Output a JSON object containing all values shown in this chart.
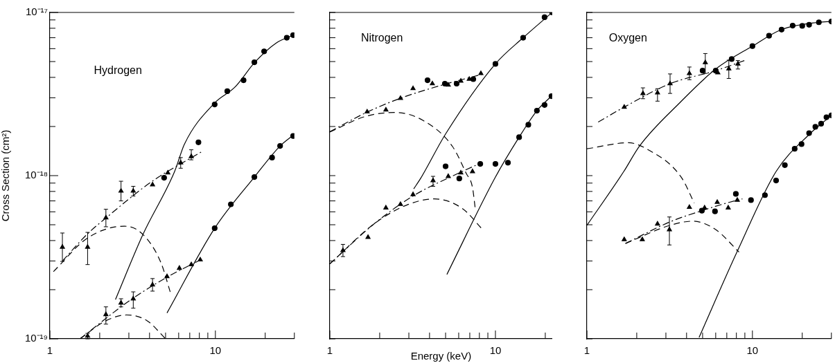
{
  "chart_data": [
    {
      "type": "scatter",
      "annotations": [
        "Hydrogen"
      ],
      "ylabel": "Cross Section (cm²)",
      "log": "xy",
      "xlim": [
        1,
        30
      ],
      "ylim": [
        1e-19,
        1e-17
      ],
      "xticks": [
        {
          "value": 1,
          "label": "1"
        },
        {
          "value": 2,
          "label": null
        },
        {
          "value": 3,
          "label": null
        },
        {
          "value": 4,
          "label": null
        },
        {
          "value": 5,
          "label": null
        },
        {
          "value": 6,
          "label": null
        },
        {
          "value": 7,
          "label": null
        },
        {
          "value": 8,
          "label": null
        },
        {
          "value": 9,
          "label": null
        },
        {
          "value": 10,
          "label": "10"
        },
        {
          "value": 20,
          "label": null
        },
        {
          "value": 30,
          "label": null
        }
      ],
      "yticks": [
        {
          "value": 1e-19,
          "label": "10⁻¹⁹"
        },
        {
          "value": 2e-19,
          "label": null
        },
        {
          "value": 3e-19,
          "label": null
        },
        {
          "value": 4e-19,
          "label": null
        },
        {
          "value": 5e-19,
          "label": null
        },
        {
          "value": 6e-19,
          "label": null
        },
        {
          "value": 7e-19,
          "label": null
        },
        {
          "value": 8e-19,
          "label": null
        },
        {
          "value": 9e-19,
          "label": null
        },
        {
          "value": 1e-18,
          "label": "10⁻¹⁸"
        },
        {
          "value": 2e-18,
          "label": null
        },
        {
          "value": 3e-18,
          "label": null
        },
        {
          "value": 4e-18,
          "label": null
        },
        {
          "value": 5e-18,
          "label": null
        },
        {
          "value": 6e-18,
          "label": null
        },
        {
          "value": 7e-18,
          "label": null
        },
        {
          "value": 8e-18,
          "label": null
        },
        {
          "value": 9e-18,
          "label": null
        },
        {
          "value": 1e-17,
          "label": "10⁻¹⁷"
        }
      ],
      "series": [
        {
          "type": "scatter",
          "marker": "circle",
          "color": "#000000",
          "x": [
            4.9,
            7.9,
            9.9,
            11.8,
            14.8,
            17.2,
            19.7,
            27,
            29.5
          ],
          "values": [
            9.7e-19,
            1.6e-18,
            2.73e-18,
            3.29e-18,
            3.84e-18,
            4.95e-18,
            5.77e-18,
            7e-18,
            7.26e-18
          ]
        },
        {
          "type": "line",
          "marker": "none",
          "line_style": "solid",
          "color": "#000000",
          "x": [
            2.49,
            3.65,
            5.67,
            6.5,
            9.9,
            13.1,
            17.4,
            23.3,
            29.5
          ],
          "values": [
            1.74e-19,
            4.36e-19,
            1.06e-18,
            1.56e-18,
            2.79e-18,
            3.48e-18,
            4.98e-18,
            6.5e-18,
            7.26e-18
          ]
        },
        {
          "type": "scatter",
          "marker": "circle",
          "color": "#000000",
          "x": [
            9.9,
            12.4,
            17.2,
            22,
            24.6,
            29.5
          ],
          "values": [
            4.76e-19,
            6.67e-19,
            9.8e-19,
            1.29e-18,
            1.52e-18,
            1.75e-18
          ]
        },
        {
          "type": "line",
          "marker": "none",
          "line_style": "solid",
          "color": "#000000",
          "x": [
            5.1,
            9.9,
            17.2,
            24.6,
            29.5
          ],
          "values": [
            1.44e-19,
            4.76e-19,
            9.8e-19,
            1.52e-18,
            1.77e-18
          ]
        },
        {
          "type": "scatter",
          "marker": "triangle",
          "color": "#000000",
          "x": [
            1.19,
            1.69,
            2.18,
            2.69,
            3.19,
            4.17,
            5.16,
            6.17,
            7.15
          ],
          "values": [
            3.65e-19,
            3.65e-19,
            5.52e-19,
            8.05e-19,
            8.05e-19,
            8.8e-19,
            1.04e-18,
            1.2e-18,
            1.31e-18
          ],
          "errors": [
            [
              2.98e-19,
              4.45e-19
            ],
            [
              2.85e-19,
              4.49e-19
            ],
            [
              4.86e-19,
              6.22e-19
            ],
            [
              7e-19,
              9.24e-19
            ],
            [
              7.5e-19,
              8.6e-19
            ],
            null,
            null,
            [
              1.11e-18,
              1.29e-18
            ],
            [
              1.25e-18,
              1.44e-18
            ]
          ]
        },
        {
          "type": "line",
          "marker": "none",
          "line_style": "dotted",
          "color": "#000000",
          "x": [
            1.19,
            1.69,
            2.18,
            4.13,
            8.26
          ],
          "values": [
            3e-19,
            4.4e-19,
            5.5e-19,
            9.2e-19,
            1.4e-18
          ]
        },
        {
          "type": "line",
          "marker": "none",
          "line_style": "dashed",
          "color": "#000000",
          "x": [
            1.05,
            1.69,
            2.82,
            3.65,
            4.68,
            5.35
          ],
          "values": [
            2.58e-19,
            4.15e-19,
            4.9e-19,
            4.36e-19,
            2.94e-19,
            1.92e-19
          ]
        },
        {
          "type": "scatter",
          "marker": "triangle",
          "color": "#000000",
          "x": [
            1.69,
            2.18,
            2.69,
            3.19,
            4.17,
            5.1,
            6.06,
            7.15,
            8.1
          ],
          "values": [
            1.04e-19,
            1.41e-19,
            1.66e-19,
            1.76e-19,
            2.14e-19,
            2.41e-19,
            2.71e-19,
            2.85e-19,
            3.05e-19
          ],
          "errors": [
            [
              1e-19,
              1.08e-19
            ],
            [
              1.23e-19,
              1.57e-19
            ],
            [
              1.57e-19,
              1.76e-19
            ],
            [
              1.54e-19,
              1.94e-19
            ],
            [
              1.96e-19,
              2.34e-19
            ],
            null,
            null,
            null,
            null
          ]
        },
        {
          "type": "line",
          "marker": "none",
          "line_style": "dotted",
          "color": "#000000",
          "x": [
            1.52,
            3.0,
            5.0,
            8.26
          ],
          "values": [
            1e-19,
            1.7e-19,
            2.36e-19,
            3.07e-19
          ]
        },
        {
          "type": "line",
          "marker": "none",
          "line_style": "dashed",
          "color": "#000000",
          "x": [
            1.52,
            2.18,
            2.9,
            3.87,
            5.0
          ],
          "values": [
            1e-19,
            1.29e-19,
            1.4e-19,
            1.29e-19,
            1e-19
          ]
        }
      ]
    },
    {
      "type": "scatter",
      "annotations": [
        "Nitrogen"
      ],
      "xlabel": "Energy (keV)",
      "log": "xy",
      "tick_labels": "x",
      "xlim": [
        1,
        22
      ],
      "ylim": [
        1e-19,
        1e-17
      ],
      "xticks": [
        {
          "value": 1,
          "label": "1"
        },
        {
          "value": 2,
          "label": null
        },
        {
          "value": 3,
          "label": null
        },
        {
          "value": 4,
          "label": null
        },
        {
          "value": 5,
          "label": null
        },
        {
          "value": 6,
          "label": null
        },
        {
          "value": 7,
          "label": null
        },
        {
          "value": 8,
          "label": null
        },
        {
          "value": 9,
          "label": null
        },
        {
          "value": 10,
          "label": "10"
        },
        {
          "value": 20,
          "label": null
        }
      ],
      "yticks": [
        {
          "value": 1e-19,
          "label": null
        },
        {
          "value": 2e-19,
          "label": null
        },
        {
          "value": 3e-19,
          "label": null
        },
        {
          "value": 4e-19,
          "label": null
        },
        {
          "value": 5e-19,
          "label": null
        },
        {
          "value": 6e-19,
          "label": null
        },
        {
          "value": 7e-19,
          "label": null
        },
        {
          "value": 8e-19,
          "label": null
        },
        {
          "value": 9e-19,
          "label": null
        },
        {
          "value": 1e-18,
          "label": null
        },
        {
          "value": 2e-18,
          "label": null
        },
        {
          "value": 3e-18,
          "label": null
        },
        {
          "value": 4e-18,
          "label": null
        },
        {
          "value": 5e-18,
          "label": null
        },
        {
          "value": 6e-18,
          "label": null
        },
        {
          "value": 7e-18,
          "label": null
        },
        {
          "value": 8e-18,
          "label": null
        },
        {
          "value": 9e-18,
          "label": null
        },
        {
          "value": 1e-17,
          "label": null
        }
      ],
      "series": [
        {
          "type": "scatter",
          "marker": "circle",
          "color": "#000000",
          "x": [
            3.89,
            4.95,
            5.83,
            7.35,
            10,
            14.7,
            19.8,
            22
          ],
          "values": [
            3.84e-18,
            3.66e-18,
            3.66e-18,
            3.9e-18,
            4.84e-18,
            7e-18,
            9.35e-18,
            1e-17
          ]
        },
        {
          "type": "line",
          "marker": "none",
          "line_style": "solid",
          "color": "#000000",
          "x": [
            3.21,
            3.53,
            5.0,
            10,
            14.7,
            22
          ],
          "values": [
            8.3e-19,
            9.6e-19,
            1.8e-18,
            4.84e-18,
            7e-18,
            1e-17
          ]
        },
        {
          "type": "scatter",
          "marker": "triangle",
          "color": "#000000",
          "x": [
            1.68,
            2.18,
            2.67,
            3.18,
            4.16,
            5.19,
            6.18,
            6.95,
            8.17
          ],
          "values": [
            2.46e-18,
            2.53e-18,
            2.98e-18,
            3.42e-18,
            3.66e-18,
            3.59e-18,
            3.8e-18,
            3.9e-18,
            4.23e-18
          ]
        },
        {
          "type": "line",
          "marker": "none",
          "line_style": "dotted",
          "color": "#000000",
          "x": [
            1,
            1.68,
            2.67,
            4.95,
            8.4
          ],
          "values": [
            1.86e-18,
            2.45e-18,
            2.98e-18,
            3.63e-18,
            4.19e-18
          ]
        },
        {
          "type": "line",
          "marker": "none",
          "line_style": "dashed",
          "color": "#000000",
          "x": [
            1,
            1.63,
            2.47,
            3.74,
            5.5,
            6.67,
            7.27,
            7.55
          ],
          "values": [
            1.85e-18,
            2.3e-18,
            2.44e-18,
            2.15e-18,
            1.51e-18,
            1.03e-18,
            8.45e-19,
            6.3e-19
          ]
        },
        {
          "type": "scatter",
          "marker": "circle",
          "color": "#000000",
          "x": [
            5.0,
            6.05,
            8.1,
            10,
            11.9,
            13.9,
            15.8,
            17.8,
            19.8,
            21.8
          ],
          "values": [
            1.14e-18,
            9.6e-19,
            1.18e-18,
            1.18e-18,
            1.2e-18,
            1.72e-18,
            2.05e-18,
            2.5e-18,
            2.71e-18,
            3.07e-18
          ]
        },
        {
          "type": "line",
          "marker": "none",
          "line_style": "solid",
          "color": "#000000",
          "x": [
            5.09,
            10,
            13.9,
            17.8,
            22
          ],
          "values": [
            2.48e-19,
            9.8e-19,
            1.72e-18,
            2.5e-18,
            3.1e-18
          ]
        },
        {
          "type": "scatter",
          "marker": "triangle",
          "color": "#000000",
          "x": [
            1.2,
            1.7,
            2.18,
            2.67,
            3.18,
            4.2,
            5.19,
            6.18,
            7.27
          ],
          "values": [
            3.48e-19,
            4.19e-19,
            6.35e-19,
            6.67e-19,
            7.66e-19,
            9.33e-19,
            9.9e-19,
            1.04e-18,
            1.06e-18
          ],
          "errors": [
            [
              3.19e-19,
              3.79e-19
            ],
            null,
            null,
            null,
            null,
            [
              8.6e-19,
              9.9e-19
            ],
            null,
            null,
            null
          ]
        },
        {
          "type": "line",
          "marker": "none",
          "line_style": "dotted",
          "color": "#000000",
          "x": [
            1,
            1.85,
            3.18,
            6.05,
            8.1
          ],
          "values": [
            2.88e-19,
            5.06e-19,
            7.5e-19,
            1.04e-18,
            1.19e-18
          ]
        },
        {
          "type": "line",
          "marker": "none",
          "line_style": "dashed",
          "color": "#000000",
          "x": [
            1,
            1.85,
            2.91,
            4.28,
            6.3,
            8.3
          ],
          "values": [
            2.88e-19,
            5.06e-19,
            6.6e-19,
            7.2e-19,
            6.3e-19,
            4.72e-19
          ]
        }
      ]
    },
    {
      "type": "scatter",
      "annotations": [
        "Oxygen"
      ],
      "log": "xy",
      "tick_labels": "x",
      "xlim": [
        1,
        30
      ],
      "ylim": [
        1e-19,
        1e-17
      ],
      "xticks": [
        {
          "value": 1,
          "label": "1"
        },
        {
          "value": 2,
          "label": null
        },
        {
          "value": 3,
          "label": null
        },
        {
          "value": 4,
          "label": null
        },
        {
          "value": 5,
          "label": null
        },
        {
          "value": 6,
          "label": null
        },
        {
          "value": 7,
          "label": null
        },
        {
          "value": 8,
          "label": null
        },
        {
          "value": 9,
          "label": null
        },
        {
          "value": 10,
          "label": "10"
        },
        {
          "value": 20,
          "label": null
        },
        {
          "value": 30,
          "label": null
        }
      ],
      "yticks": [
        {
          "value": 1e-19,
          "label": null
        },
        {
          "value": 2e-19,
          "label": null
        },
        {
          "value": 3e-19,
          "label": null
        },
        {
          "value": 4e-19,
          "label": null
        },
        {
          "value": 5e-19,
          "label": null
        },
        {
          "value": 6e-19,
          "label": null
        },
        {
          "value": 7e-19,
          "label": null
        },
        {
          "value": 8e-19,
          "label": null
        },
        {
          "value": 9e-19,
          "label": null
        },
        {
          "value": 1e-18,
          "label": null
        },
        {
          "value": 2e-18,
          "label": null
        },
        {
          "value": 3e-18,
          "label": null
        },
        {
          "value": 4e-18,
          "label": null
        },
        {
          "value": 5e-18,
          "label": null
        },
        {
          "value": 6e-18,
          "label": null
        },
        {
          "value": 7e-18,
          "label": null
        },
        {
          "value": 8e-18,
          "label": null
        },
        {
          "value": 9e-18,
          "label": null
        },
        {
          "value": 1e-17,
          "label": null
        }
      ],
      "series": [
        {
          "type": "scatter",
          "marker": "circle",
          "color": "#000000",
          "x": [
            5.0,
            6.0,
            7.49,
            10,
            12.6,
            15.0,
            17.5,
            20.0,
            22.0,
            25.2,
            30
          ],
          "values": [
            4.4e-18,
            4.4e-18,
            5.18e-18,
            6.22e-18,
            7.2e-18,
            7.85e-18,
            8.3e-18,
            8.27e-18,
            8.4e-18,
            8.7e-18,
            8.8e-18
          ]
        },
        {
          "type": "line",
          "marker": "none",
          "line_style": "solid",
          "color": "#000000",
          "x": [
            1,
            1.67,
            2.08,
            3.67,
            6.0,
            10,
            15,
            25,
            30
          ],
          "values": [
            4.96e-19,
            1.06e-18,
            1.52e-18,
            2.82e-18,
            4.5e-18,
            6.22e-18,
            7.85e-18,
            8.7e-18,
            8.8e-18
          ]
        },
        {
          "type": "scatter",
          "marker": "triangle",
          "color": "#000000",
          "x": [
            1.68,
            2.18,
            2.67,
            3.18,
            4.16,
            5.19,
            6.18,
            7.2,
            8.17
          ],
          "values": [
            2.63e-18,
            3.19e-18,
            3.22e-18,
            3.66e-18,
            4.23e-18,
            4.93e-18,
            4.27e-18,
            4.52e-18,
            4.84e-18
          ],
          "errors": [
            null,
            [
              2.96e-18,
              3.45e-18
            ],
            [
              2.86e-18,
              3.41e-18
            ],
            [
              3.19e-18,
              4.2e-18
            ],
            [
              3.87e-18,
              4.63e-18
            ],
            [
              4.23e-18,
              5.6e-18
            ],
            null,
            [
              3.94e-18,
              5.1e-18
            ],
            [
              4.5e-18,
              5.07e-18
            ]
          ]
        },
        {
          "type": "line",
          "marker": "none",
          "line_style": "dotted",
          "color": "#000000",
          "x": [
            1.17,
            1.68,
            3.18,
            6,
            9.0
          ],
          "values": [
            2.13e-18,
            2.63e-18,
            3.66e-18,
            4.4e-18,
            5.08e-18
          ]
        },
        {
          "type": "line",
          "marker": "none",
          "line_style": "dashed",
          "color": "#000000",
          "x": [
            1,
            1.78,
            2.29,
            3.71,
            4.45
          ],
          "values": [
            1.46e-18,
            1.59e-18,
            1.46e-18,
            9.8e-19,
            6.8e-19
          ]
        },
        {
          "type": "scatter",
          "marker": "circle",
          "color": "#000000",
          "x": [
            4.95,
            5.94,
            7.94,
            9.8,
            11.9,
            13.9,
            15.7,
            18,
            19.8,
            22,
            24,
            26,
            28,
            30
          ],
          "values": [
            6.1e-19,
            6.04e-19,
            7.73e-19,
            7.08e-19,
            7.59e-19,
            9.33e-19,
            1.16e-18,
            1.46e-18,
            1.56e-18,
            1.82e-18,
            1.99e-18,
            2.08e-18,
            2.28e-18,
            2.34e-18
          ]
        },
        {
          "type": "line",
          "marker": "none",
          "line_style": "solid",
          "color": "#000000",
          "x": [
            4.76,
            8.17,
            13.9,
            21.8,
            30
          ],
          "values": [
            1.02e-19,
            3.5e-19,
            1.06e-18,
            1.77e-18,
            2.34e-18
          ]
        },
        {
          "type": "scatter",
          "marker": "triangle",
          "color": "#000000",
          "x": [
            1.68,
            2.16,
            2.67,
            3.15,
            4.16,
            5.14,
            6.13,
            7.14,
            8.1
          ],
          "values": [
            4.06e-19,
            4.06e-19,
            5.06e-19,
            4.67e-19,
            6.4e-19,
            6.35e-19,
            6.87e-19,
            6.35e-19,
            7.08e-19
          ],
          "errors": [
            null,
            null,
            null,
            [
              3.76e-19,
              5.58e-19
            ],
            null,
            null,
            null,
            null,
            null
          ]
        },
        {
          "type": "line",
          "marker": "none",
          "line_style": "dotted",
          "color": "#000000",
          "x": [
            1.71,
            3.18,
            4.95,
            8.1,
            8.7
          ],
          "values": [
            3.84e-19,
            5.21e-19,
            6.1e-19,
            7.08e-19,
            7.2e-19
          ]
        },
        {
          "type": "line",
          "marker": "none",
          "line_style": "dashed",
          "color": "#000000",
          "x": [
            1.71,
            3.18,
            4.37,
            6.0,
            8.3
          ],
          "values": [
            3.84e-19,
            4.96e-19,
            5.26e-19,
            4.67e-19,
            3.4e-19
          ]
        }
      ]
    }
  ]
}
